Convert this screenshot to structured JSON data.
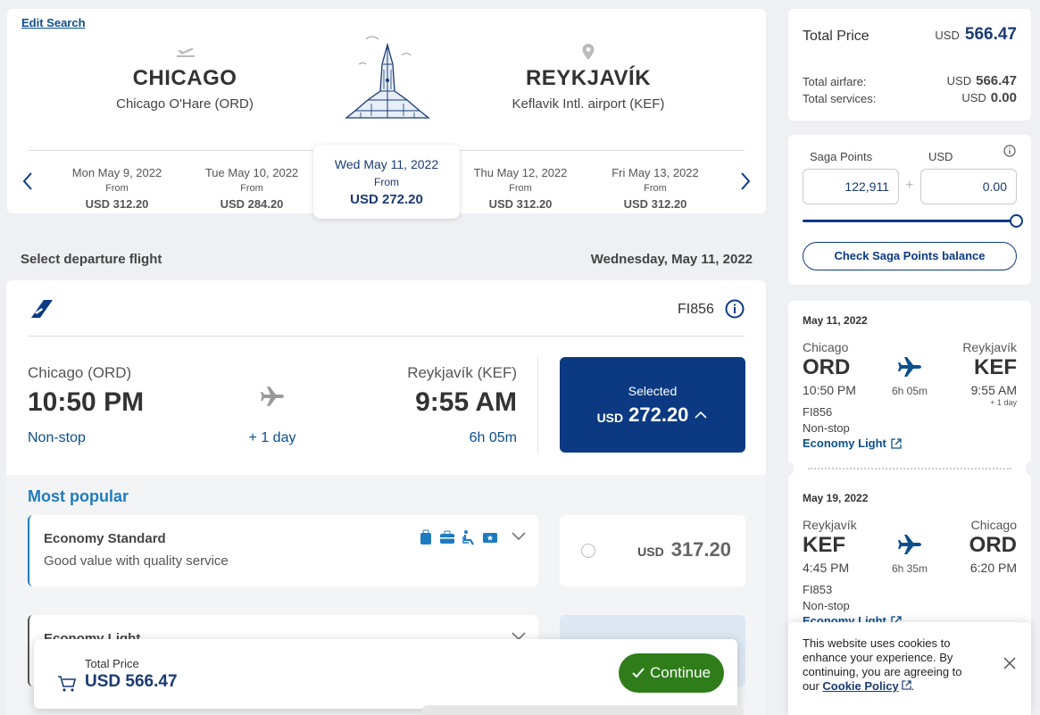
{
  "search": {
    "edit_label": "Edit Search",
    "origin_city": "CHICAGO",
    "origin_airport": "Chicago O'Hare (ORD)",
    "dest_city": "REYKJAVÍK",
    "dest_airport": "Keflavik Intl. airport (KEF)"
  },
  "dates": [
    {
      "date": "Mon May 9, 2022",
      "from": "From",
      "price": "USD 312.20"
    },
    {
      "date": "Tue May 10, 2022",
      "from": "From",
      "price": "USD 284.20"
    },
    {
      "date": "Wed May 11, 2022",
      "from": "From",
      "price": "USD 272.20",
      "selected": true
    },
    {
      "date": "Thu May 12, 2022",
      "from": "From",
      "price": "USD 312.20"
    },
    {
      "date": "Fri May 13, 2022",
      "from": "From",
      "price": "USD 312.20"
    }
  ],
  "section": {
    "title": "Select departure flight",
    "date": "Wednesday, May 11, 2022"
  },
  "flight": {
    "number": "FI856",
    "origin": "Chicago (ORD)",
    "dep_time": "10:50 PM",
    "stops": "Non-stop",
    "plus_day": "+ 1 day",
    "dest": "Reykjavík (KEF)",
    "arr_time": "9:55 AM",
    "duration": "6h 05m",
    "selected_label": "Selected",
    "selected_currency": "USD",
    "selected_price": "272.20"
  },
  "fares": {
    "heading": "Most popular",
    "standard_name": "Economy Standard",
    "standard_desc": "Good value with quality service",
    "standard_currency": "USD",
    "standard_price": "317.20",
    "light_name": "Economy Light"
  },
  "price_summary": {
    "title": "Total Price",
    "currency": "USD",
    "total": "566.47",
    "airfare_label": "Total airfare:",
    "airfare_currency": "USD",
    "airfare": "566.47",
    "services_label": "Total services:",
    "services_currency": "USD",
    "services": "0.00"
  },
  "saga": {
    "points_label": "Saga Points",
    "usd_label": "USD",
    "points_value": "122,911",
    "plus": "+",
    "usd_value": "0.00",
    "slider_level": 1.0,
    "check_label": "Check Saga Points balance"
  },
  "itinerary": [
    {
      "date": "May 11, 2022",
      "from_city": "Chicago",
      "from_code": "ORD",
      "dep": "10:50 PM",
      "duration": "6h 05m",
      "to_city": "Reykjavík",
      "to_code": "KEF",
      "arr": "9:55 AM",
      "plus_day": "+ 1 day",
      "flight": "FI856",
      "stops": "Non-stop",
      "fare": "Economy Light"
    },
    {
      "date": "May 19, 2022",
      "from_city": "Reykjavík",
      "from_code": "KEF",
      "dep": "4:45 PM",
      "duration": "6h 35m",
      "to_city": "Chicago",
      "to_code": "ORD",
      "arr": "6:20 PM",
      "flight": "FI853",
      "stops": "Non-stop",
      "fare": "Economy Light"
    }
  ],
  "cookie": {
    "text": "This website uses cookies to enhance your experience. By continuing, you are agreeing to our",
    "link": "Cookie Policy",
    "end": "."
  },
  "bottom_bar": {
    "label": "Total Price",
    "price": "USD 566.47",
    "continue_label": "Continue"
  },
  "colors": {
    "primary": "#0b3a82",
    "text_blue": "#1a3a72",
    "link": "#0b4f8c",
    "continue": "#2e7d1a"
  }
}
